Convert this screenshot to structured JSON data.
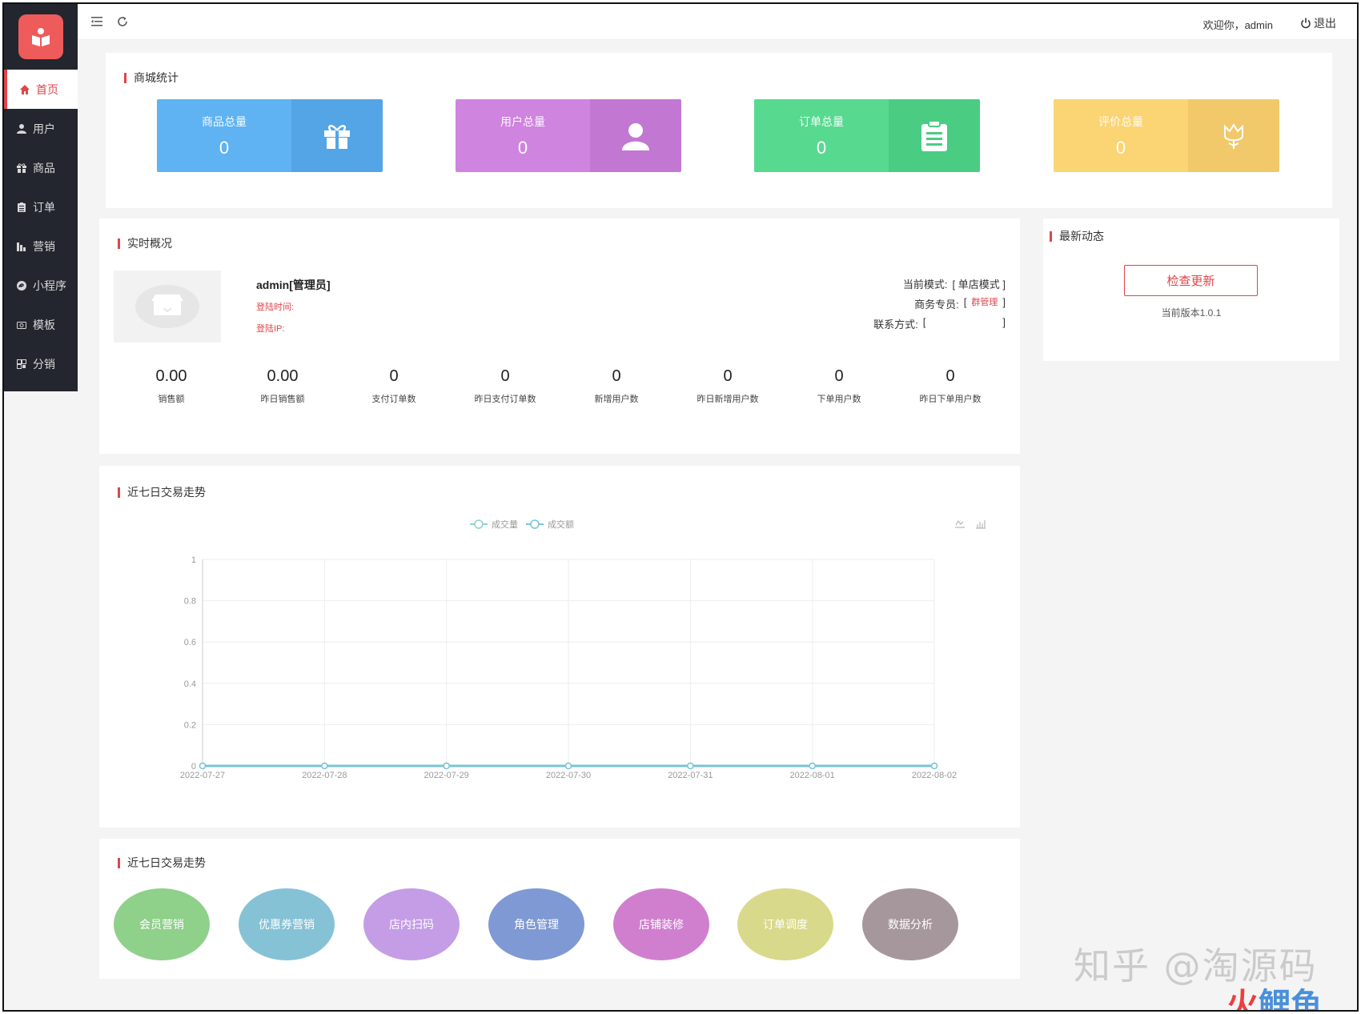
{
  "sidebar": {
    "items": [
      {
        "label": "首页",
        "icon": "home-icon"
      },
      {
        "label": "用户",
        "icon": "user-icon"
      },
      {
        "label": "商品",
        "icon": "gift-icon"
      },
      {
        "label": "订单",
        "icon": "clipboard-icon"
      },
      {
        "label": "营销",
        "icon": "marketing-icon"
      },
      {
        "label": "小程序",
        "icon": "miniprogram-icon"
      },
      {
        "label": "模板",
        "icon": "camera-icon"
      },
      {
        "label": "分销",
        "icon": "distribution-icon"
      }
    ]
  },
  "header": {
    "welcome": "欢迎你，admin",
    "logout": "退出"
  },
  "mall_stats": {
    "title": "商城统计",
    "cards": [
      {
        "label": "商品总量",
        "value": "0",
        "color_left": "#5fb3f2",
        "color_right": "#53a5e6",
        "icon": "gift-icon"
      },
      {
        "label": "用户总量",
        "value": "0",
        "color_left": "#cf84df",
        "color_right": "#c277d3",
        "icon": "user-icon"
      },
      {
        "label": "订单总量",
        "value": "0",
        "color_left": "#57d98f",
        "color_right": "#4bcc83",
        "icon": "clipboard-icon"
      },
      {
        "label": "评价总量",
        "value": "0",
        "color_left": "#fbd473",
        "color_right": "#f1c96a",
        "icon": "flower-icon"
      }
    ]
  },
  "realtime": {
    "title": "实时概况",
    "user": "admin[管理员]",
    "login_time_label": "登陆时间:",
    "login_ip_label": "登陆IP:",
    "mode_label": "当前模式:",
    "mode_value": "[ 单店模式 ]",
    "business_label": "商务专员:",
    "business_value": "群管理",
    "business_open": "[",
    "business_close": "]",
    "contact_label": "联系方式:",
    "contact_open": "[",
    "contact_close": "]",
    "metrics": [
      {
        "value": "0.00",
        "label": "销售额"
      },
      {
        "value": "0.00",
        "label": "昨日销售额"
      },
      {
        "value": "0",
        "label": "支付订单数"
      },
      {
        "value": "0",
        "label": "昨日支付订单数"
      },
      {
        "value": "0",
        "label": "新增用户数"
      },
      {
        "value": "0",
        "label": "昨日新增用户数"
      },
      {
        "value": "0",
        "label": "下单用户数"
      },
      {
        "value": "0",
        "label": "昨日下单用户数"
      }
    ]
  },
  "news": {
    "title": "最新动态",
    "check_update": "检查更新",
    "version": "当前版本1.0.1"
  },
  "trend": {
    "title": "近七日交易走势"
  },
  "chart_data": {
    "type": "line",
    "x": [
      "2022-07-27",
      "2022-07-28",
      "2022-07-29",
      "2022-07-30",
      "2022-07-31",
      "2022-08-01",
      "2022-08-02"
    ],
    "series": [
      {
        "name": "成交量",
        "values": [
          0,
          0,
          0,
          0,
          0,
          0,
          0
        ],
        "color": "#8ed3c9"
      },
      {
        "name": "成交额",
        "values": [
          0,
          0,
          0,
          0,
          0,
          0,
          0
        ],
        "color": "#78c4d6"
      }
    ],
    "yticks": [
      "0",
      "0.2",
      "0.4",
      "0.6",
      "0.8",
      "1"
    ],
    "ylim": [
      0,
      1
    ],
    "grid": true,
    "legend": "top-center",
    "title": "",
    "xlabel": "",
    "ylabel": ""
  },
  "shortcuts": {
    "title": "近七日交易走势",
    "items": [
      {
        "label": "会员营销",
        "color": "#8fd08a"
      },
      {
        "label": "优惠券营销",
        "color": "#86c2d6"
      },
      {
        "label": "店内扫码",
        "color": "#c49de6"
      },
      {
        "label": "角色管理",
        "color": "#7f99d4"
      },
      {
        "label": "店铺装修",
        "color": "#d07fcf"
      },
      {
        "label": "订单调度",
        "color": "#d8d98a"
      },
      {
        "label": "数据分析",
        "color": "#a6979c"
      }
    ]
  },
  "watermark": {
    "zhihu": "知乎 @淘源码",
    "brand_a": "火",
    "brand_b": "鲤鱼"
  }
}
